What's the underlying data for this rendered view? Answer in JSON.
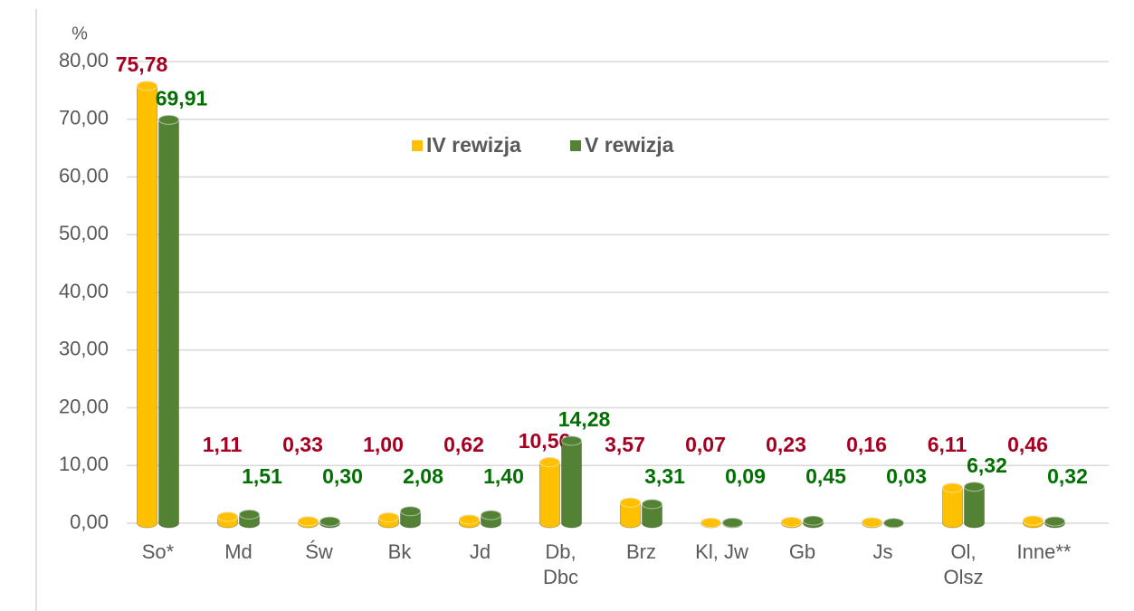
{
  "chart_data": {
    "type": "bar",
    "y_label": "%",
    "categories": [
      "So*",
      "Md",
      "Św",
      "Bk",
      "Jd",
      "Db,\nDbc",
      "Brz",
      "Kl, Jw",
      "Gb",
      "Js",
      "Ol,\nOlsz",
      "Inne**"
    ],
    "series": [
      {
        "name": "IV rewizja",
        "color": "#ffc000",
        "label_color": "#a50021",
        "values": [
          75.78,
          1.11,
          0.33,
          1.0,
          0.62,
          10.56,
          3.57,
          0.07,
          0.23,
          0.16,
          6.11,
          0.46
        ],
        "value_labels": [
          "75,78",
          "1,11",
          "0,33",
          "1,00",
          "0,62",
          "10,56",
          "3,57",
          "0,07",
          "0,23",
          "0,16",
          "6,11",
          "0,46"
        ]
      },
      {
        "name": "V rewizja",
        "color": "#548235",
        "label_color": "#007000",
        "values": [
          69.91,
          1.51,
          0.3,
          2.08,
          1.4,
          14.28,
          3.31,
          0.09,
          0.45,
          0.03,
          6.32,
          0.32
        ],
        "value_labels": [
          "69,91",
          "1,51",
          "0,30",
          "2,08",
          "1,40",
          "14,28",
          "3,31",
          "0,09",
          "0,45",
          "0,03",
          "6,32",
          "0,32"
        ]
      }
    ],
    "ylim": [
      0,
      80
    ],
    "yticks": [
      {
        "value": 0,
        "label": "0,00"
      },
      {
        "value": 10,
        "label": "10,00"
      },
      {
        "value": 20,
        "label": "20,00"
      },
      {
        "value": 30,
        "label": "30,00"
      },
      {
        "value": 40,
        "label": "40,00"
      },
      {
        "value": 50,
        "label": "50,00"
      },
      {
        "value": 60,
        "label": "60,00"
      },
      {
        "value": 70,
        "label": "70,00"
      },
      {
        "value": 80,
        "label": "80,00"
      }
    ],
    "grid": true,
    "legend": "top"
  }
}
